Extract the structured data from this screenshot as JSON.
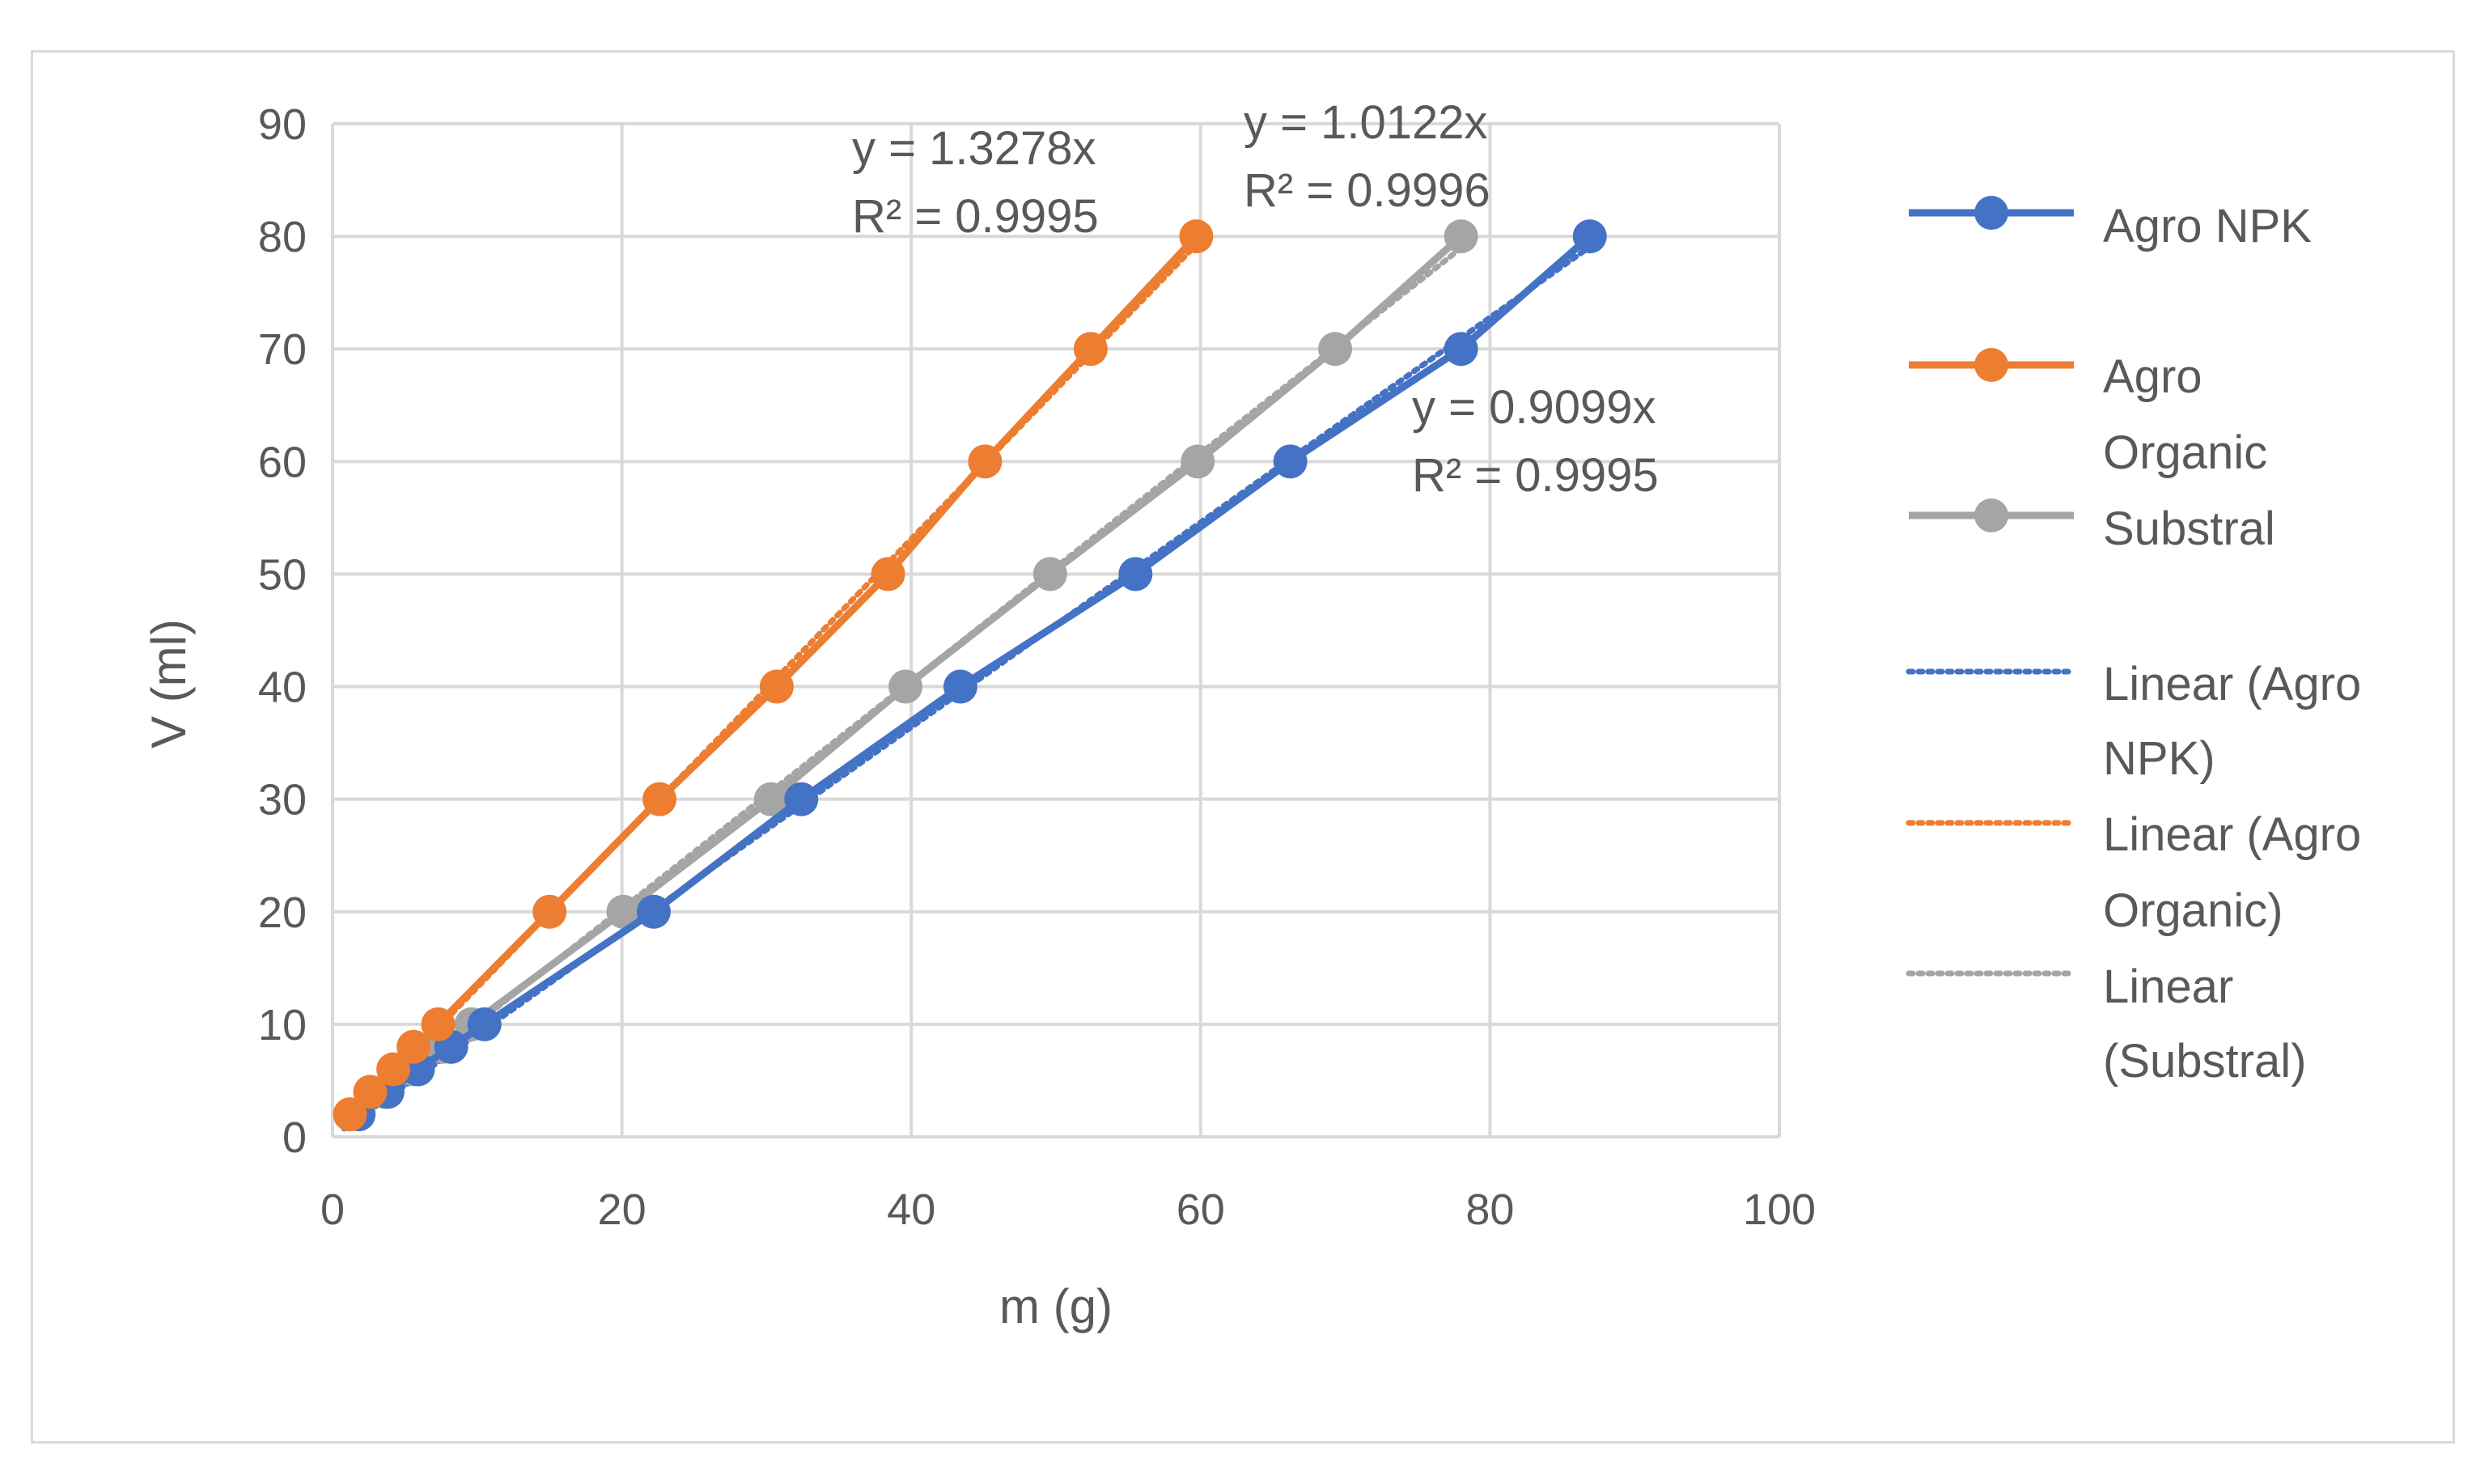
{
  "chart_data": {
    "type": "scatter",
    "title": "",
    "xlabel": "m (g)",
    "ylabel": "V (ml)",
    "xlim": [
      0,
      100
    ],
    "ylim": [
      0,
      90
    ],
    "xticks": [
      0,
      20,
      40,
      60,
      80,
      100
    ],
    "yticks": [
      0,
      10,
      20,
      30,
      40,
      50,
      60,
      70,
      80,
      90
    ],
    "grid": true,
    "legend_position": "right",
    "series": [
      {
        "name": "Agro NPK",
        "color": "#4472C4",
        "x": [
          1.8,
          3.8,
          5.9,
          8.2,
          10.5,
          22.2,
          32.4,
          43.4,
          55.5,
          66.2,
          78.0,
          86.9
        ],
        "y": [
          2,
          4,
          6,
          8,
          10,
          20,
          30,
          40,
          50,
          60,
          70,
          80
        ],
        "trendline": {
          "name": "Linear (Agro NPK)",
          "slope": 0.9099,
          "equation": "y = 0.9099x",
          "r2": "R² = 0.9995"
        }
      },
      {
        "name": "Agro Organic",
        "color": "#ED7D31",
        "x": [
          1.2,
          2.6,
          4.2,
          5.6,
          7.3,
          15.0,
          22.6,
          30.7,
          38.4,
          45.1,
          52.4,
          59.7
        ],
        "y": [
          2,
          4,
          6,
          8,
          10,
          20,
          30,
          40,
          50,
          60,
          70,
          80
        ],
        "trendline": {
          "name": "Linear (Agro Organic)",
          "slope": 1.3278,
          "equation": "y = 1.3278x",
          "r2": "R² = 0.9995"
        }
      },
      {
        "name": "Substral",
        "color": "#A5A5A5",
        "x": [
          1.8,
          3.6,
          5.6,
          7.6,
          9.6,
          20.1,
          30.3,
          39.6,
          49.6,
          59.8,
          69.3,
          78.0
        ],
        "y": [
          2,
          4,
          6,
          8,
          10,
          20,
          30,
          40,
          50,
          60,
          70,
          80
        ],
        "trendline": {
          "name": "Linear (Substral)",
          "slope": 1.0122,
          "equation": "y = 1.0122x",
          "r2": "R² = 0.9996"
        }
      }
    ],
    "legend": [
      {
        "lines": [
          "Agro NPK"
        ],
        "color": "#4472C4",
        "style": "solid"
      },
      {
        "lines": [
          "Agro",
          "Organic"
        ],
        "color": "#ED7D31",
        "style": "solid"
      },
      {
        "lines": [
          "Substral"
        ],
        "color": "#A5A5A5",
        "style": "solid"
      },
      {
        "lines": [
          "Linear (Agro",
          "NPK)"
        ],
        "color": "#4472C4",
        "style": "dotted"
      },
      {
        "lines": [
          "Linear (Agro",
          "Organic)"
        ],
        "color": "#ED7D31",
        "style": "dotted"
      },
      {
        "lines": [
          "Linear",
          "(Substral)"
        ],
        "color": "#A5A5A5",
        "style": "dotted"
      }
    ]
  }
}
